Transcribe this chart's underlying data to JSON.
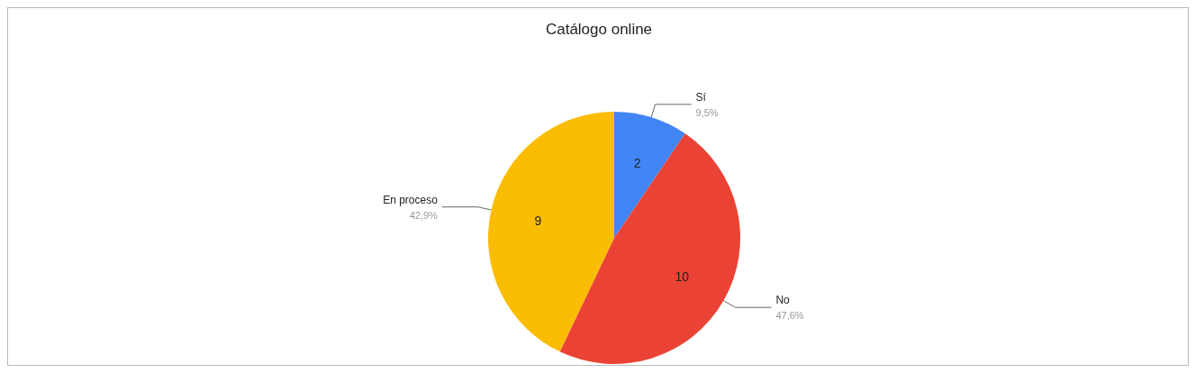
{
  "chart_data": {
    "type": "pie",
    "title": "Catálogo online",
    "categories": [
      "Sí",
      "No",
      "En proceso"
    ],
    "values": [
      9.5,
      47.6,
      42.9
    ],
    "colors": [
      "#4285f4",
      "#ea4335",
      "#fbbc04"
    ],
    "value_labels": [
      "9,5%",
      "47,6%",
      "42,9%"
    ],
    "annotations": [
      {
        "text": "2",
        "x": "Sí"
      },
      {
        "text": "10",
        "x": "No"
      },
      {
        "text": "9",
        "x": "En proceso"
      }
    ],
    "legend": false
  }
}
